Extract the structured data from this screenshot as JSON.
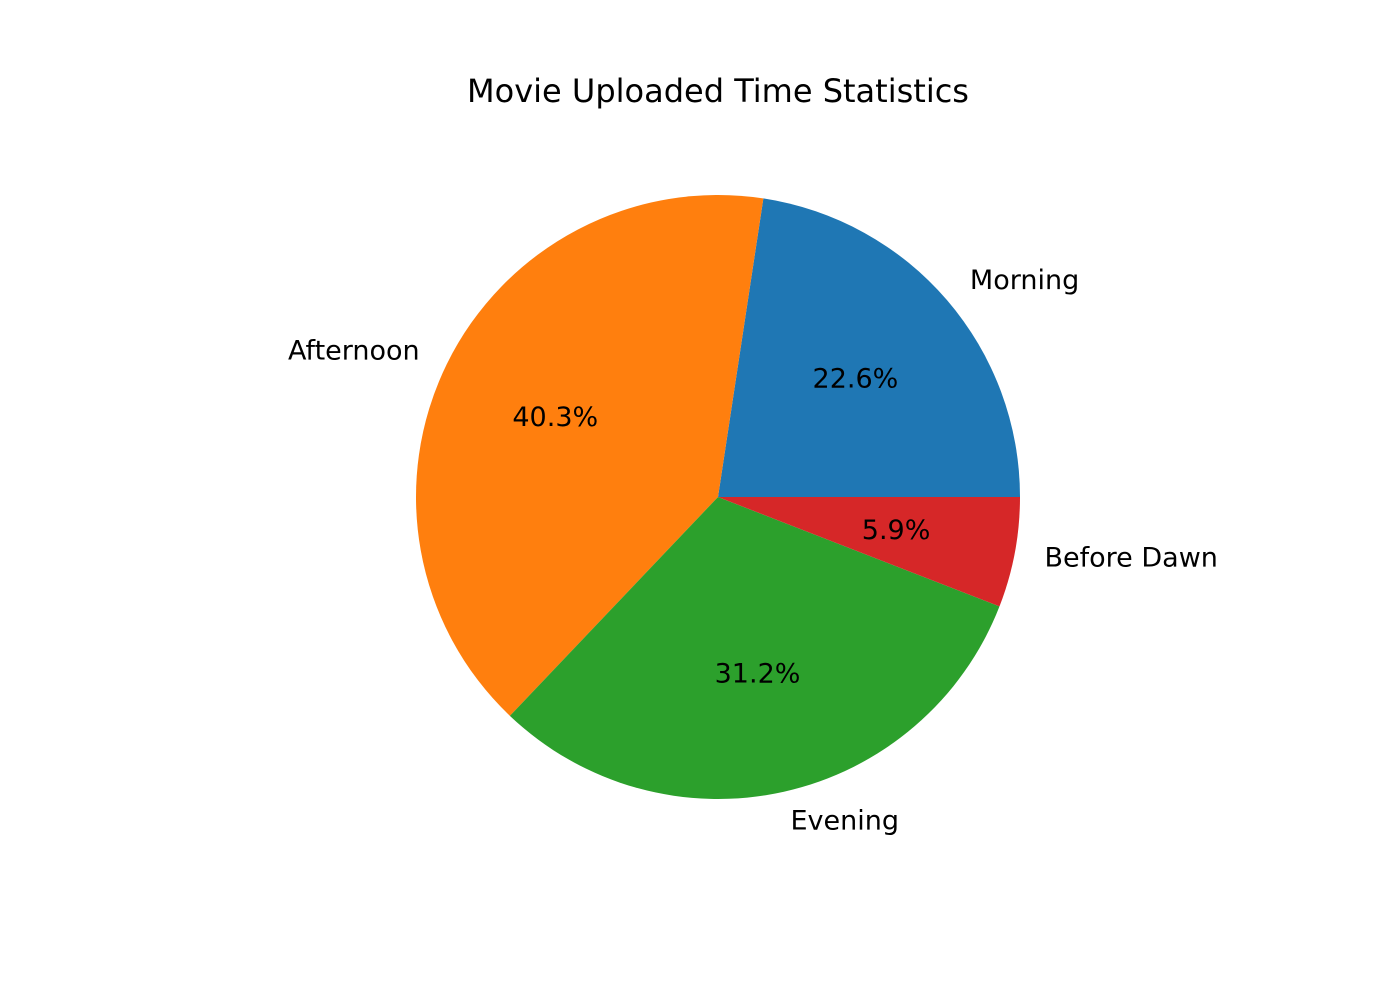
{
  "chart_data": {
    "type": "pie",
    "title": "Movie Uploaded Time Statistics",
    "slices": [
      {
        "label": "Morning",
        "value": 22.6,
        "pct_text": "22.6%",
        "color": "#1f77b4"
      },
      {
        "label": "Afternoon",
        "value": 40.3,
        "pct_text": "40.3%",
        "color": "#ff7f0e"
      },
      {
        "label": "Evening",
        "value": 31.2,
        "pct_text": "31.2%",
        "color": "#2ca02c"
      },
      {
        "label": "Before Dawn",
        "value": 5.9,
        "pct_text": "5.9%",
        "color": "#d62728"
      }
    ],
    "start_angle_deg": 0,
    "direction": "counterclockwise",
    "legend": "none"
  }
}
